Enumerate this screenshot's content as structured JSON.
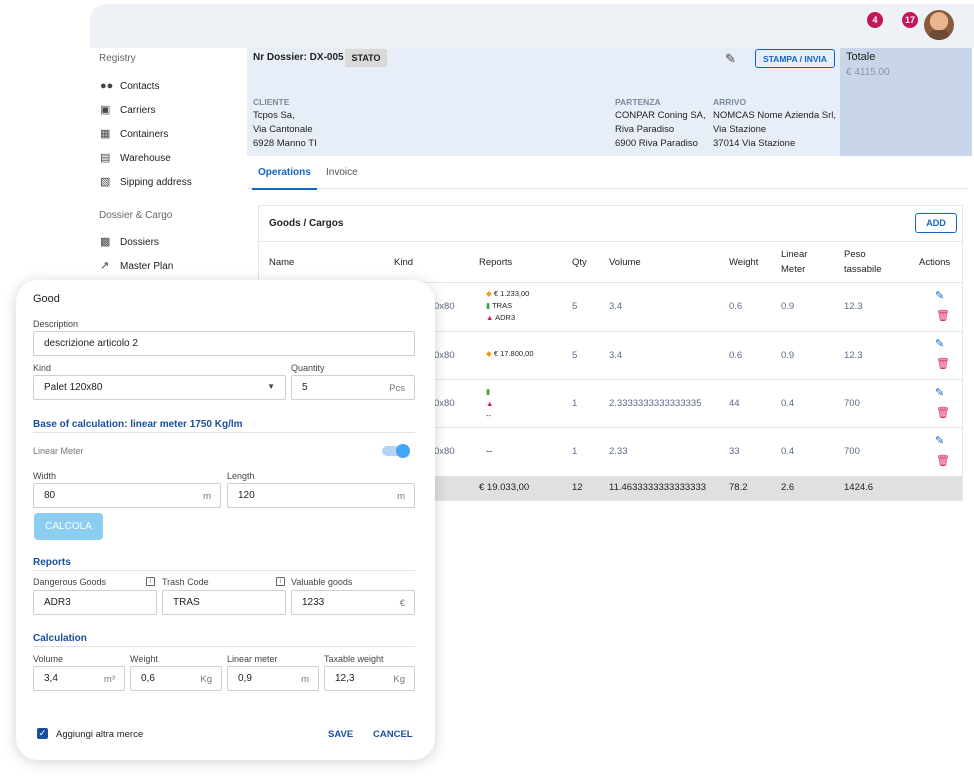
{
  "topbar": {
    "notifications_badge": "4",
    "messages_badge": "17"
  },
  "sidebar": {
    "registry_title": "Registry",
    "registry_items": [
      {
        "label": "Contacts",
        "icon": "contacts-icon"
      },
      {
        "label": "Carriers",
        "icon": "truck-icon"
      },
      {
        "label": "Containers",
        "icon": "containers-icon"
      },
      {
        "label": "Warehouse",
        "icon": "warehouse-icon"
      },
      {
        "label": "Sipping address",
        "icon": "address-icon"
      }
    ],
    "cargo_title": "Dossier & Cargo",
    "cargo_items": [
      {
        "label": "Dossiers",
        "icon": "dossier-icon"
      },
      {
        "label": "Master Plan",
        "icon": "route-icon"
      }
    ]
  },
  "header": {
    "dossier": "Nr Dossier: DX-005",
    "stato": "STATO",
    "stampa": "STAMPA / INVIA",
    "cliente_h": "CLIENTE",
    "cliente": [
      "Tcpos Sa,",
      "Via Cantonale",
      "6928 Manno TI"
    ],
    "partenza_h": "PARTENZA",
    "partenza": [
      "CONPAR Coning SA,",
      "Riva Paradiso",
      "6900 Riva Paradiso"
    ],
    "arrivo_h": "ARRIVO",
    "arrivo": [
      "NOMCAS Nome Azienda Srl,",
      "Via Stazione",
      "37014 Via Stazione"
    ],
    "totale_label": "Totale",
    "totale_value": "€ 4115.00"
  },
  "tabs": {
    "operations": "Operations",
    "invoice": "Invoice"
  },
  "goods": {
    "title": "Goods / Cargos",
    "add": "ADD",
    "headers": {
      "name": "Name",
      "kind": "Kind",
      "reports": "Reports",
      "qty": "Qty",
      "volume": "Volume",
      "weight": "Weight",
      "linear1": "Linear",
      "linear2": "Meter",
      "peso1": "Peso",
      "peso2": "tassabile",
      "actions": "Actions"
    },
    "rows": [
      {
        "kind": "0x80",
        "rep1": "€ 1.233,00",
        "rep2": "TRAS",
        "rep3": "ADR3",
        "qty": "5",
        "volume": "3.4",
        "weight": "0.6",
        "linear": "0.9",
        "peso": "12.3"
      },
      {
        "kind": "0x80",
        "rep1": "€ 17.800,00",
        "qty": "5",
        "volume": "3.4",
        "weight": "0.6",
        "linear": "0.9",
        "peso": "12.3"
      },
      {
        "kind": "0x80",
        "rep_dash": "--",
        "qty": "1",
        "volume": "2.3333333333333335",
        "weight": "44",
        "linear": "0.4",
        "peso": "700"
      },
      {
        "kind": "0x80",
        "rep_text": "--",
        "qty": "1",
        "volume": "2.33",
        "weight": "33",
        "linear": "0.4",
        "peso": "700"
      }
    ],
    "totals": {
      "reports": "€ 19.033,00",
      "qty": "12",
      "volume": "11.4633333333333333",
      "weight": "78.2",
      "linear": "2.6",
      "peso": "1424.6"
    }
  },
  "modal": {
    "title": "Good",
    "description_label": "Description",
    "description_value": "descrizione articolo 2",
    "kind_label": "Kind",
    "kind_value": "Palet 120x80",
    "quantity_label": "Quantity",
    "quantity_value": "5",
    "quantity_unit": "Pcs",
    "base_title": "Base of calculation: linear meter 1750 Kg/lm",
    "linear_meter_label": "Linear Meter",
    "linear_meter_on": true,
    "width_label": "Width",
    "width_value": "80",
    "width_unit": "m",
    "length_label": "Length",
    "length_value": "120",
    "length_unit": "m",
    "calcola": "CALCOLA",
    "reports_title": "Reports",
    "dangerous_label": "Dangerous Goods",
    "dangerous_value": "ADR3",
    "trash_label": "Trash Code",
    "trash_value": "TRAS",
    "valuable_label": "Valuable goods",
    "valuable_value": "1233",
    "valuable_unit": "€",
    "calc_title": "Calculation",
    "volume_label": "Volume",
    "volume_value": "3,4",
    "volume_unit": "m³",
    "weight_label": "Weight",
    "weight_value": "0,6",
    "weight_unit": "Kg",
    "linear_label": "Linear meter",
    "linear_value": "0,9",
    "linear_unit": "m",
    "taxable_label": "Taxable weight",
    "taxable_value": "12,3",
    "taxable_unit": "Kg",
    "add_more": "Aggiungi altra merce",
    "save": "SAVE",
    "cancel": "CANCEL"
  }
}
